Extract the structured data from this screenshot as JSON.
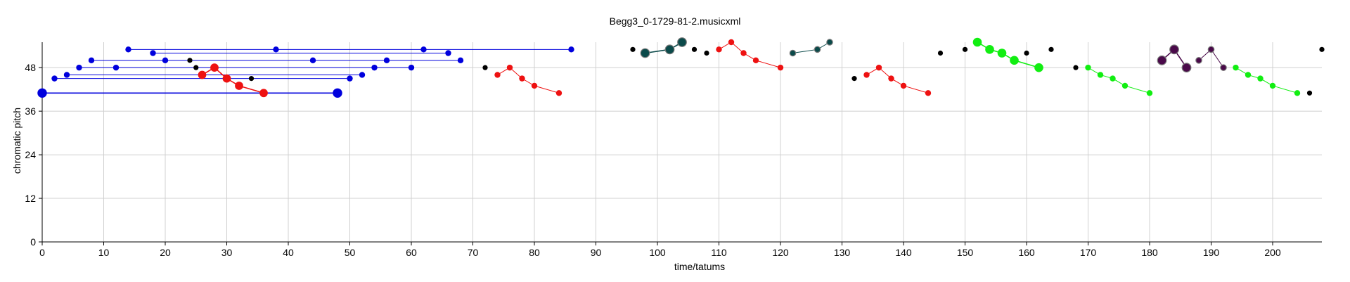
{
  "chart_data": {
    "type": "scatter",
    "title": "Begg3_0-1729-81-2.musicxml",
    "xlabel": "time/tatums",
    "ylabel": "chromatic pitch",
    "xlim": [
      0,
      208
    ],
    "ylim": [
      0,
      55
    ],
    "xticks": [
      0,
      10,
      20,
      30,
      40,
      50,
      60,
      70,
      80,
      90,
      100,
      110,
      120,
      130,
      140,
      150,
      160,
      170,
      180,
      190,
      200
    ],
    "yticks": [
      0,
      12,
      24,
      36,
      48
    ],
    "grid": true,
    "legend": "none",
    "colors": {
      "blue": "#0000dd",
      "red": "#ee1111",
      "teal": "#0b4a4a",
      "green": "#11ee11",
      "purple": "#4a0a4a",
      "black": "#000000"
    },
    "series": [
      {
        "color": "blue",
        "points": [
          [
            14,
            53
          ],
          [
            38,
            53
          ],
          [
            62,
            53
          ],
          [
            86,
            53
          ]
        ],
        "sizes": [
          1,
          1,
          1,
          1
        ]
      },
      {
        "color": "blue",
        "points": [
          [
            18,
            52
          ],
          [
            66,
            52
          ]
        ],
        "sizes": [
          1,
          1
        ]
      },
      {
        "color": "blue",
        "points": [
          [
            8,
            50
          ],
          [
            20,
            50
          ],
          [
            44,
            50
          ],
          [
            56,
            50
          ],
          [
            68,
            50
          ]
        ],
        "sizes": [
          1,
          1,
          1,
          1,
          1
        ]
      },
      {
        "color": "blue",
        "points": [
          [
            6,
            48
          ],
          [
            12,
            48
          ],
          [
            54,
            48
          ],
          [
            60,
            48
          ]
        ],
        "sizes": [
          1,
          1,
          1,
          1
        ]
      },
      {
        "color": "blue",
        "points": [
          [
            4,
            46
          ],
          [
            52,
            46
          ]
        ],
        "sizes": [
          1,
          1
        ]
      },
      {
        "color": "blue",
        "points": [
          [
            2,
            45
          ],
          [
            50,
            45
          ]
        ],
        "sizes": [
          1,
          1
        ]
      },
      {
        "color": "blue",
        "points": [
          [
            0,
            41
          ],
          [
            48,
            41
          ]
        ],
        "sizes": [
          1.6,
          1.6
        ]
      },
      {
        "color": "red",
        "points": [
          [
            26,
            46
          ],
          [
            28,
            48
          ],
          [
            30,
            45
          ],
          [
            32,
            43
          ],
          [
            36,
            41
          ]
        ],
        "sizes": [
          1.4,
          1.4,
          1.4,
          1.4,
          1.4
        ]
      },
      {
        "color": "red",
        "points": [
          [
            74,
            46
          ],
          [
            76,
            48
          ],
          [
            78,
            45
          ],
          [
            80,
            43
          ],
          [
            84,
            41
          ]
        ],
        "sizes": [
          1,
          1,
          1,
          1,
          1
        ]
      },
      {
        "color": "teal",
        "points": [
          [
            98,
            52
          ],
          [
            102,
            53
          ],
          [
            104,
            55
          ]
        ],
        "sizes": [
          1.5,
          1.5,
          1.5
        ]
      },
      {
        "color": "red",
        "points": [
          [
            110,
            53
          ],
          [
            112,
            55
          ],
          [
            114,
            52
          ],
          [
            116,
            50
          ],
          [
            120,
            48
          ]
        ],
        "sizes": [
          1,
          1,
          1,
          1,
          1
        ]
      },
      {
        "color": "teal",
        "points": [
          [
            122,
            52
          ],
          [
            126,
            53
          ],
          [
            128,
            55
          ]
        ],
        "sizes": [
          1,
          1,
          1
        ]
      },
      {
        "color": "red",
        "points": [
          [
            134,
            46
          ],
          [
            136,
            48
          ],
          [
            138,
            45
          ],
          [
            140,
            43
          ],
          [
            144,
            41
          ]
        ],
        "sizes": [
          1,
          1,
          1,
          1,
          1
        ]
      },
      {
        "color": "green",
        "points": [
          [
            152,
            55
          ],
          [
            154,
            53
          ],
          [
            156,
            52
          ],
          [
            158,
            50
          ],
          [
            162,
            48
          ]
        ],
        "sizes": [
          1.5,
          1.5,
          1.5,
          1.5,
          1.5
        ]
      },
      {
        "color": "green",
        "points": [
          [
            170,
            48
          ],
          [
            172,
            46
          ],
          [
            174,
            45
          ],
          [
            176,
            43
          ],
          [
            180,
            41
          ]
        ],
        "sizes": [
          1,
          1,
          1,
          1,
          1
        ]
      },
      {
        "color": "purple",
        "points": [
          [
            182,
            50
          ],
          [
            184,
            53
          ],
          [
            186,
            48
          ]
        ],
        "sizes": [
          1.5,
          1.5,
          1.5
        ]
      },
      {
        "color": "purple",
        "points": [
          [
            188,
            50
          ],
          [
            190,
            53
          ],
          [
            192,
            48
          ]
        ],
        "sizes": [
          1,
          1,
          1
        ]
      },
      {
        "color": "green",
        "points": [
          [
            194,
            48
          ],
          [
            196,
            46
          ],
          [
            198,
            45
          ],
          [
            200,
            43
          ],
          [
            204,
            41
          ]
        ],
        "sizes": [
          1,
          1,
          1,
          1,
          1
        ]
      }
    ],
    "black_points": [
      [
        24,
        50
      ],
      [
        25,
        48
      ],
      [
        34,
        45
      ],
      [
        72,
        48
      ],
      [
        96,
        53
      ],
      [
        106,
        53
      ],
      [
        108,
        52
      ],
      [
        132,
        45
      ],
      [
        146,
        52
      ],
      [
        150,
        53
      ],
      [
        160,
        52
      ],
      [
        164,
        53
      ],
      [
        168,
        48
      ],
      [
        206,
        41
      ],
      [
        208,
        53
      ]
    ]
  }
}
